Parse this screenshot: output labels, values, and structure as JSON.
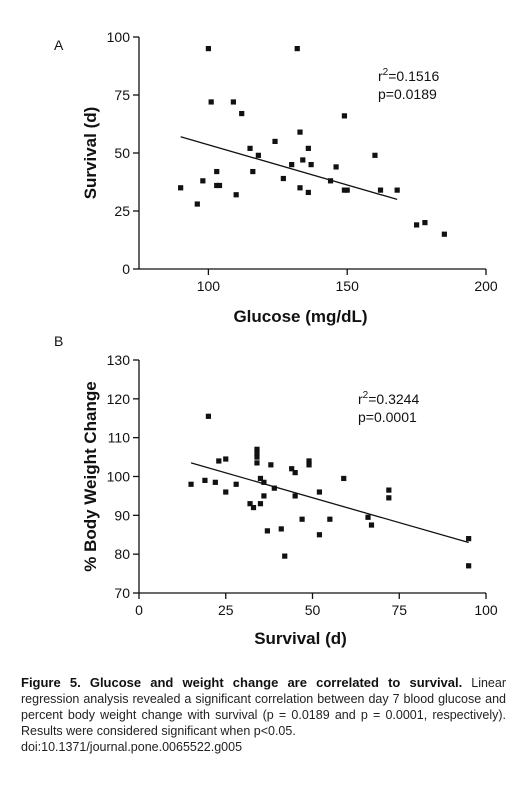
{
  "chart_data": [
    {
      "panel": "A",
      "type": "scatter",
      "xlabel": "Glucose (mg/dL)",
      "ylabel": "Survival (d)",
      "xlim": [
        75,
        200
      ],
      "ylim": [
        0,
        100
      ],
      "xticks": [
        100,
        150,
        200
      ],
      "yticks": [
        0,
        25,
        50,
        75,
        100
      ],
      "annotation": {
        "r2_prefix": "r",
        "r2_sup": "2",
        "r2_value": "=0.1516",
        "p": "p=0.0189"
      },
      "points": [
        [
          90,
          35
        ],
        [
          96,
          28
        ],
        [
          98,
          38
        ],
        [
          100,
          95
        ],
        [
          101,
          72
        ],
        [
          103,
          42
        ],
        [
          103,
          36
        ],
        [
          104,
          36
        ],
        [
          109,
          72
        ],
        [
          110,
          32
        ],
        [
          112,
          67
        ],
        [
          115,
          52
        ],
        [
          116,
          42
        ],
        [
          118,
          49
        ],
        [
          124,
          55
        ],
        [
          127,
          39
        ],
        [
          130,
          45
        ],
        [
          132,
          95
        ],
        [
          133,
          59
        ],
        [
          133,
          35
        ],
        [
          134,
          47
        ],
        [
          136,
          52
        ],
        [
          136,
          33
        ],
        [
          137,
          45
        ],
        [
          144,
          38
        ],
        [
          146,
          44
        ],
        [
          149,
          66
        ],
        [
          149,
          34
        ],
        [
          150,
          34
        ],
        [
          160,
          49
        ],
        [
          162,
          34
        ],
        [
          168,
          34
        ],
        [
          175,
          19
        ],
        [
          178,
          20
        ],
        [
          185,
          15
        ]
      ],
      "regression": {
        "x": [
          90,
          168
        ],
        "y": [
          57,
          30
        ]
      }
    },
    {
      "panel": "B",
      "type": "scatter",
      "xlabel": "Survival (d)",
      "ylabel": "% Body Weight Change",
      "xlim": [
        0,
        100
      ],
      "ylim": [
        70,
        130
      ],
      "xticks": [
        0,
        25,
        50,
        75,
        100
      ],
      "yticks": [
        70,
        80,
        90,
        100,
        110,
        120,
        130
      ],
      "annotation": {
        "r2_prefix": "r",
        "r2_sup": "2",
        "r2_value": "=0.3244",
        "p": "p=0.0001"
      },
      "points": [
        [
          15,
          98
        ],
        [
          19,
          99
        ],
        [
          20,
          115.5
        ],
        [
          22,
          98.5
        ],
        [
          23,
          104
        ],
        [
          25,
          104.5
        ],
        [
          25,
          96
        ],
        [
          28,
          98
        ],
        [
          32,
          93
        ],
        [
          33,
          92
        ],
        [
          34,
          107
        ],
        [
          34,
          106
        ],
        [
          34,
          105
        ],
        [
          34,
          103.5
        ],
        [
          35,
          99.5
        ],
        [
          35,
          93
        ],
        [
          36,
          95
        ],
        [
          36,
          98.5
        ],
        [
          37,
          86
        ],
        [
          38,
          103
        ],
        [
          39,
          97
        ],
        [
          41,
          86.5
        ],
        [
          42,
          79.5
        ],
        [
          44,
          102
        ],
        [
          45,
          101
        ],
        [
          45,
          95
        ],
        [
          47,
          89
        ],
        [
          49,
          104
        ],
        [
          49,
          103
        ],
        [
          52,
          96
        ],
        [
          52,
          85
        ],
        [
          55,
          89
        ],
        [
          59,
          99.5
        ],
        [
          66,
          89.5
        ],
        [
          67,
          87.5
        ],
        [
          72,
          96.5
        ],
        [
          72,
          94.5
        ],
        [
          95,
          84
        ],
        [
          95,
          77
        ]
      ],
      "regression": {
        "x": [
          15,
          95
        ],
        "y": [
          103.5,
          83
        ]
      }
    }
  ],
  "caption": {
    "title": "Figure 5. Glucose and weight change are correlated to survival.",
    "body": "Linear regression analysis revealed a significant correlation between day 7 blood glucose and percent body weight change with survival (p = 0.0189 and p = 0.0001, respectively). Results were considered significant when p<0.05.",
    "doi": "doi:10.1371/journal.pone.0065522.g005"
  }
}
